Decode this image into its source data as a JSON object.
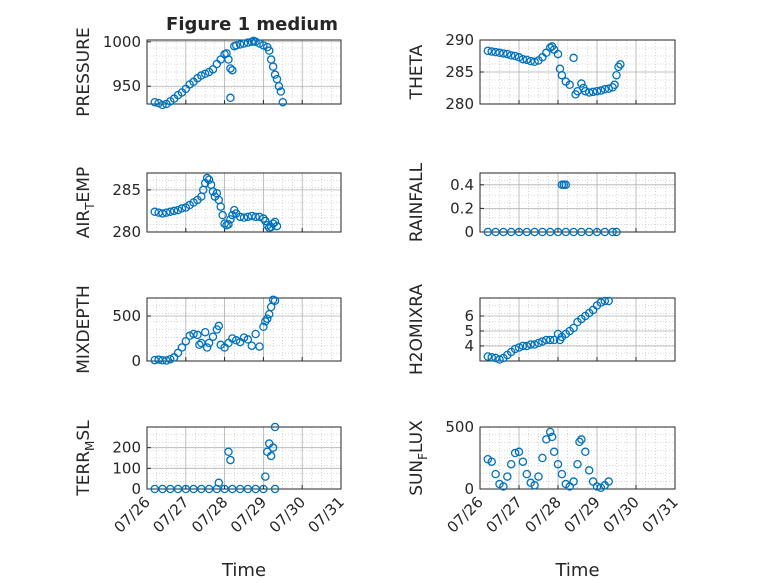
{
  "title": "Figure 1 medium",
  "colors": {
    "marker": "#0072BD",
    "axis": "#262626",
    "grid": "#b0b0b0"
  },
  "chart_data": [
    {
      "type": "scatter",
      "ylabel": "PRESSURE",
      "ylim": [
        930,
        1002
      ],
      "yticks": [
        950,
        1000
      ],
      "xlim": [
        "07/26",
        "07/31"
      ],
      "xticks": [
        "07/26",
        "07/27",
        "07/28",
        "07/29",
        "07/30",
        "07/31"
      ],
      "grid": true,
      "points": [
        [
          0.2,
          932
        ],
        [
          0.3,
          931
        ],
        [
          0.4,
          929
        ],
        [
          0.5,
          930
        ],
        [
          0.6,
          933
        ],
        [
          0.7,
          936
        ],
        [
          0.8,
          940
        ],
        [
          0.9,
          943
        ],
        [
          1.0,
          947
        ],
        [
          1.1,
          952
        ],
        [
          1.2,
          955
        ],
        [
          1.3,
          959
        ],
        [
          1.4,
          962
        ],
        [
          1.5,
          964
        ],
        [
          1.6,
          966
        ],
        [
          1.7,
          969
        ],
        [
          1.8,
          975
        ],
        [
          1.9,
          980
        ],
        [
          2.0,
          986
        ],
        [
          2.05,
          987
        ],
        [
          2.1,
          980
        ],
        [
          2.15,
          970
        ],
        [
          2.15,
          937
        ],
        [
          2.2,
          968
        ],
        [
          2.25,
          995
        ],
        [
          2.3,
          996
        ],
        [
          2.4,
          997
        ],
        [
          2.5,
          998
        ],
        [
          2.6,
          999
        ],
        [
          2.7,
          1000
        ],
        [
          2.75,
          1001
        ],
        [
          2.8,
          1000
        ],
        [
          2.9,
          998
        ],
        [
          3.0,
          996
        ],
        [
          3.1,
          994
        ],
        [
          3.15,
          990
        ],
        [
          3.2,
          980
        ],
        [
          3.25,
          972
        ],
        [
          3.3,
          963
        ],
        [
          3.35,
          958
        ],
        [
          3.4,
          950
        ],
        [
          3.45,
          944
        ],
        [
          3.5,
          932
        ]
      ]
    },
    {
      "type": "scatter",
      "ylabel": "THETA",
      "ylim": [
        280,
        290
      ],
      "yticks": [
        280,
        285,
        290
      ],
      "xlim": [
        "07/26",
        "07/31"
      ],
      "xticks": [
        "07/26",
        "07/27",
        "07/28",
        "07/29",
        "07/30",
        "07/31"
      ],
      "grid": true,
      "points": [
        [
          0.2,
          288.3
        ],
        [
          0.3,
          288.2
        ],
        [
          0.4,
          288.1
        ],
        [
          0.5,
          288.0
        ],
        [
          0.6,
          287.9
        ],
        [
          0.7,
          287.8
        ],
        [
          0.8,
          287.6
        ],
        [
          0.9,
          287.5
        ],
        [
          1.0,
          287.3
        ],
        [
          1.1,
          287.0
        ],
        [
          1.2,
          286.9
        ],
        [
          1.3,
          286.7
        ],
        [
          1.4,
          286.6
        ],
        [
          1.5,
          286.8
        ],
        [
          1.6,
          287.3
        ],
        [
          1.7,
          288.0
        ],
        [
          1.8,
          288.8
        ],
        [
          1.85,
          289.0
        ],
        [
          1.9,
          288.5
        ],
        [
          2.0,
          287.8
        ],
        [
          2.05,
          285.5
        ],
        [
          2.1,
          284.5
        ],
        [
          2.2,
          283.5
        ],
        [
          2.3,
          283.0
        ],
        [
          2.4,
          287.2
        ],
        [
          2.45,
          281.5
        ],
        [
          2.5,
          282.0
        ],
        [
          2.6,
          283.2
        ],
        [
          2.65,
          282.5
        ],
        [
          2.7,
          282.0
        ],
        [
          2.8,
          281.8
        ],
        [
          2.9,
          281.9
        ],
        [
          3.0,
          282.0
        ],
        [
          3.1,
          282.1
        ],
        [
          3.2,
          282.3
        ],
        [
          3.3,
          282.4
        ],
        [
          3.4,
          282.6
        ],
        [
          3.45,
          283.0
        ],
        [
          3.5,
          284.5
        ],
        [
          3.55,
          285.8
        ],
        [
          3.6,
          286.2
        ]
      ]
    },
    {
      "type": "scatter",
      "ylabel": "AIR_TEMP",
      "ylim": [
        280,
        287
      ],
      "yticks": [
        280,
        285
      ],
      "xlim": [
        "07/26",
        "07/31"
      ],
      "xticks": [
        "07/26",
        "07/27",
        "07/28",
        "07/29",
        "07/30",
        "07/31"
      ],
      "grid": true,
      "points": [
        [
          0.2,
          282.4
        ],
        [
          0.3,
          282.3
        ],
        [
          0.4,
          282.2
        ],
        [
          0.5,
          282.3
        ],
        [
          0.6,
          282.4
        ],
        [
          0.7,
          282.5
        ],
        [
          0.8,
          282.6
        ],
        [
          0.9,
          282.8
        ],
        [
          1.0,
          282.9
        ],
        [
          1.1,
          283.2
        ],
        [
          1.2,
          283.5
        ],
        [
          1.3,
          283.8
        ],
        [
          1.4,
          284.2
        ],
        [
          1.45,
          285.0
        ],
        [
          1.5,
          285.8
        ],
        [
          1.55,
          286.4
        ],
        [
          1.6,
          286.2
        ],
        [
          1.65,
          285.6
        ],
        [
          1.7,
          284.8
        ],
        [
          1.75,
          284.2
        ],
        [
          1.8,
          284.6
        ],
        [
          1.85,
          283.8
        ],
        [
          1.9,
          283.0
        ],
        [
          1.95,
          282.0
        ],
        [
          2.0,
          281.0
        ],
        [
          2.05,
          280.8
        ],
        [
          2.1,
          280.9
        ],
        [
          2.15,
          281.5
        ],
        [
          2.2,
          282.0
        ],
        [
          2.25,
          282.6
        ],
        [
          2.3,
          282.2
        ],
        [
          2.4,
          281.8
        ],
        [
          2.5,
          281.7
        ],
        [
          2.6,
          281.8
        ],
        [
          2.7,
          281.9
        ],
        [
          2.8,
          281.8
        ],
        [
          2.9,
          281.8
        ],
        [
          3.0,
          281.6
        ],
        [
          3.05,
          281.3
        ],
        [
          3.1,
          280.8
        ],
        [
          3.15,
          280.5
        ],
        [
          3.2,
          280.6
        ],
        [
          3.25,
          281.0
        ],
        [
          3.3,
          281.2
        ],
        [
          3.35,
          280.7
        ]
      ]
    },
    {
      "type": "scatter",
      "ylabel": "RAINFALL",
      "ylim": [
        0,
        0.5
      ],
      "yticks": [
        0,
        0.2,
        0.4
      ],
      "xlim": [
        "07/26",
        "07/31"
      ],
      "xticks": [
        "07/26",
        "07/27",
        "07/28",
        "07/29",
        "07/30",
        "07/31"
      ],
      "grid": true,
      "points": [
        [
          0.2,
          0
        ],
        [
          0.4,
          0
        ],
        [
          0.6,
          0
        ],
        [
          0.8,
          0
        ],
        [
          1.0,
          0
        ],
        [
          1.2,
          0
        ],
        [
          1.4,
          0
        ],
        [
          1.6,
          0
        ],
        [
          1.8,
          0
        ],
        [
          2.0,
          0
        ],
        [
          2.1,
          0.4
        ],
        [
          2.15,
          0.4
        ],
        [
          2.2,
          0.4
        ],
        [
          2.2,
          0
        ],
        [
          2.4,
          0
        ],
        [
          2.6,
          0
        ],
        [
          2.8,
          0
        ],
        [
          3.0,
          0
        ],
        [
          3.2,
          0
        ],
        [
          3.4,
          0
        ],
        [
          3.5,
          0
        ]
      ]
    },
    {
      "type": "scatter",
      "ylabel": "MIXDEPTH",
      "ylim": [
        0,
        700
      ],
      "yticks": [
        0,
        500
      ],
      "xlim": [
        "07/26",
        "07/31"
      ],
      "xticks": [
        "07/26",
        "07/27",
        "07/28",
        "07/29",
        "07/30",
        "07/31"
      ],
      "grid": true,
      "points": [
        [
          0.2,
          10
        ],
        [
          0.3,
          15
        ],
        [
          0.4,
          8
        ],
        [
          0.5,
          5
        ],
        [
          0.6,
          20
        ],
        [
          0.7,
          40
        ],
        [
          0.8,
          90
        ],
        [
          0.9,
          150
        ],
        [
          1.0,
          220
        ],
        [
          1.1,
          280
        ],
        [
          1.2,
          300
        ],
        [
          1.3,
          290
        ],
        [
          1.35,
          180
        ],
        [
          1.4,
          200
        ],
        [
          1.5,
          320
        ],
        [
          1.55,
          150
        ],
        [
          1.6,
          200
        ],
        [
          1.7,
          270
        ],
        [
          1.8,
          350
        ],
        [
          1.85,
          390
        ],
        [
          1.9,
          180
        ],
        [
          2.0,
          150
        ],
        [
          2.1,
          200
        ],
        [
          2.2,
          250
        ],
        [
          2.3,
          230
        ],
        [
          2.4,
          210
        ],
        [
          2.5,
          260
        ],
        [
          2.6,
          240
        ],
        [
          2.7,
          170
        ],
        [
          2.8,
          300
        ],
        [
          2.9,
          160
        ],
        [
          3.0,
          380
        ],
        [
          3.05,
          440
        ],
        [
          3.1,
          470
        ],
        [
          3.15,
          520
        ],
        [
          3.2,
          600
        ],
        [
          3.25,
          680
        ],
        [
          3.3,
          670
        ]
      ]
    },
    {
      "type": "scatter",
      "ylabel": "H2OMIXRA",
      "ylim": [
        3,
        7.2
      ],
      "yticks": [
        4,
        5,
        6
      ],
      "xlim": [
        "07/26",
        "07/31"
      ],
      "xticks": [
        "07/26",
        "07/27",
        "07/28",
        "07/29",
        "07/30",
        "07/31"
      ],
      "grid": true,
      "points": [
        [
          0.2,
          3.3
        ],
        [
          0.3,
          3.25
        ],
        [
          0.4,
          3.2
        ],
        [
          0.5,
          3.1
        ],
        [
          0.6,
          3.2
        ],
        [
          0.7,
          3.4
        ],
        [
          0.8,
          3.6
        ],
        [
          0.9,
          3.8
        ],
        [
          1.0,
          3.9
        ],
        [
          1.1,
          4.0
        ],
        [
          1.2,
          4.0
        ],
        [
          1.3,
          4.1
        ],
        [
          1.4,
          4.1
        ],
        [
          1.5,
          4.2
        ],
        [
          1.6,
          4.3
        ],
        [
          1.7,
          4.4
        ],
        [
          1.8,
          4.4
        ],
        [
          1.9,
          4.4
        ],
        [
          2.0,
          4.8
        ],
        [
          2.05,
          4.4
        ],
        [
          2.1,
          4.6
        ],
        [
          2.2,
          4.8
        ],
        [
          2.3,
          5.0
        ],
        [
          2.4,
          5.2
        ],
        [
          2.5,
          5.6
        ],
        [
          2.6,
          5.8
        ],
        [
          2.7,
          6.0
        ],
        [
          2.8,
          6.2
        ],
        [
          2.9,
          6.4
        ],
        [
          3.0,
          6.7
        ],
        [
          3.1,
          6.9
        ],
        [
          3.2,
          7.0
        ],
        [
          3.3,
          7.0
        ]
      ]
    },
    {
      "type": "scatter",
      "ylabel": "TERR_MSL",
      "ylim": [
        0,
        300
      ],
      "yticks": [
        0,
        100,
        200
      ],
      "xlim": [
        "07/26",
        "07/31"
      ],
      "xticks": [
        "07/26",
        "07/27",
        "07/28",
        "07/29",
        "07/30",
        "07/31"
      ],
      "xlabel": "Time",
      "grid": true,
      "points": [
        [
          0.2,
          0
        ],
        [
          0.4,
          0
        ],
        [
          0.6,
          0
        ],
        [
          0.8,
          0
        ],
        [
          1.0,
          0
        ],
        [
          1.2,
          0
        ],
        [
          1.4,
          0
        ],
        [
          1.6,
          0
        ],
        [
          1.8,
          0
        ],
        [
          1.85,
          30
        ],
        [
          2.0,
          0
        ],
        [
          2.1,
          180
        ],
        [
          2.15,
          140
        ],
        [
          2.2,
          0
        ],
        [
          2.4,
          0
        ],
        [
          2.6,
          0
        ],
        [
          2.8,
          0
        ],
        [
          3.0,
          0
        ],
        [
          3.05,
          60
        ],
        [
          3.1,
          180
        ],
        [
          3.15,
          220
        ],
        [
          3.2,
          160
        ],
        [
          3.25,
          200
        ],
        [
          3.3,
          300
        ],
        [
          3.3,
          0
        ]
      ]
    },
    {
      "type": "scatter",
      "ylabel": "SUN_FLUX",
      "ylim": [
        0,
        500
      ],
      "yticks": [
        0,
        500
      ],
      "xlim": [
        "07/26",
        "07/31"
      ],
      "xticks": [
        "07/26",
        "07/27",
        "07/28",
        "07/29",
        "07/30",
        "07/31"
      ],
      "xlabel": "Time",
      "grid": true,
      "points": [
        [
          0.2,
          240
        ],
        [
          0.3,
          220
        ],
        [
          0.4,
          120
        ],
        [
          0.5,
          40
        ],
        [
          0.6,
          20
        ],
        [
          0.7,
          100
        ],
        [
          0.8,
          200
        ],
        [
          0.9,
          290
        ],
        [
          1.0,
          300
        ],
        [
          1.1,
          220
        ],
        [
          1.2,
          120
        ],
        [
          1.3,
          50
        ],
        [
          1.4,
          30
        ],
        [
          1.5,
          100
        ],
        [
          1.6,
          250
        ],
        [
          1.7,
          400
        ],
        [
          1.8,
          460
        ],
        [
          1.85,
          420
        ],
        [
          1.9,
          300
        ],
        [
          2.0,
          200
        ],
        [
          2.1,
          120
        ],
        [
          2.2,
          40
        ],
        [
          2.3,
          20
        ],
        [
          2.4,
          60
        ],
        [
          2.5,
          200
        ],
        [
          2.55,
          380
        ],
        [
          2.6,
          400
        ],
        [
          2.7,
          300
        ],
        [
          2.8,
          150
        ],
        [
          2.9,
          60
        ],
        [
          3.0,
          20
        ],
        [
          3.1,
          10
        ],
        [
          3.2,
          30
        ],
        [
          3.3,
          60
        ]
      ]
    }
  ]
}
